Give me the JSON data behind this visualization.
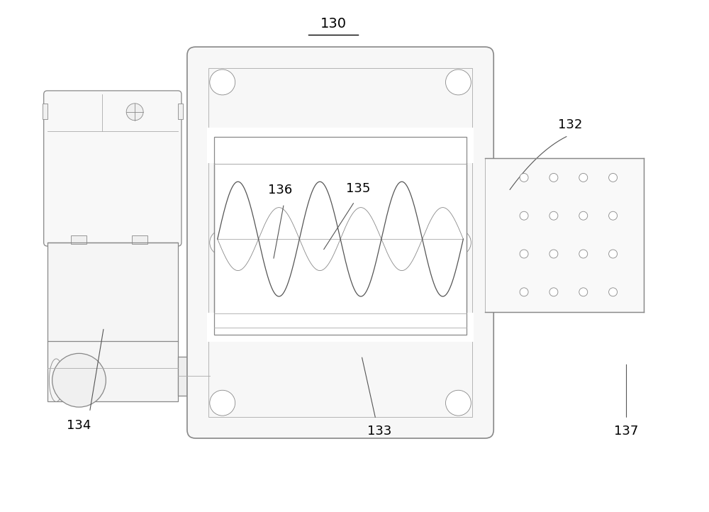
{
  "title": "130",
  "bg_color": "#ffffff",
  "line_color": "#aaaaaa",
  "med_line": "#888888",
  "dark_line": "#555555",
  "label_color": "#000000",
  "label_fontsize": 13,
  "fig_w": 10.0,
  "fig_h": 7.22
}
